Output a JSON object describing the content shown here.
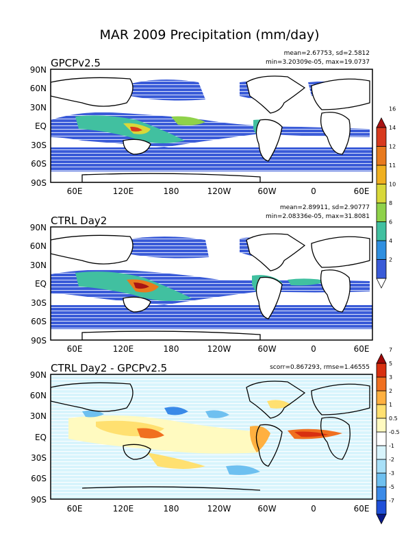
{
  "figure_title": "MAR 2009 Precipitation (mm/day)",
  "lat_labels": [
    "90N",
    "60N",
    "30N",
    "EQ",
    "30S",
    "60S",
    "90S"
  ],
  "lon_labels": [
    "60E",
    "120E",
    "180",
    "120W",
    "60W",
    "0",
    "60E"
  ],
  "panels": [
    {
      "title": "GPCPv2.5",
      "stats_line1": "mean=2.67753, sd=2.5812",
      "stats_line2": "min=3.20309e-05, max=19.0737"
    },
    {
      "title": "CTRL Day2",
      "stats_line1": "mean=2.89911, sd=2.90777",
      "stats_line2": "min=2.08336e-05, max=31.8081"
    },
    {
      "title": "CTRL Day2 - GPCPv2.5",
      "stats_line1": "scorr=0.867293, rmse=1.46555",
      "stats_line2": ""
    }
  ],
  "colorbar_precip": {
    "labels": [
      "2",
      "4",
      "6",
      "8",
      "10",
      "11",
      "12",
      "14",
      "16"
    ],
    "colors": [
      "#ffffff",
      "#3a5bd8",
      "#2f8fe0",
      "#41c0a0",
      "#8fd24a",
      "#d8d83a",
      "#f0b020",
      "#e87a1e",
      "#d83a1e",
      "#a81414"
    ]
  },
  "colorbar_diff": {
    "labels": [
      "-7",
      "-5",
      "-3",
      "-2",
      "-1",
      "-0.5",
      "0.5",
      "1",
      "2",
      "3",
      "5",
      "7"
    ],
    "colors": [
      "#0a1a8a",
      "#1f4fd8",
      "#3a8ae8",
      "#6ec0f0",
      "#a8e0f8",
      "#d8f4fc",
      "#ffffff",
      "#fffac0",
      "#ffe070",
      "#ffb040",
      "#f07020",
      "#d83010",
      "#a00808"
    ]
  },
  "chart_data": {
    "type": "heatmap",
    "title": "MAR 2009 Precipitation (mm/day)",
    "panels": [
      {
        "name": "GPCPv2.5",
        "mean": 2.67753,
        "sd": 2.5812,
        "min": 3.20309e-05,
        "max": 19.0737
      },
      {
        "name": "CTRL Day2",
        "mean": 2.89911,
        "sd": 2.90777,
        "min": 2.08336e-05,
        "max": 31.8081
      },
      {
        "name": "CTRL Day2 - GPCPv2.5",
        "scorr": 0.867293,
        "rmse": 1.46555
      }
    ],
    "lat_range": [
      -90,
      90
    ],
    "lon_range": [
      0,
      360
    ]
  }
}
